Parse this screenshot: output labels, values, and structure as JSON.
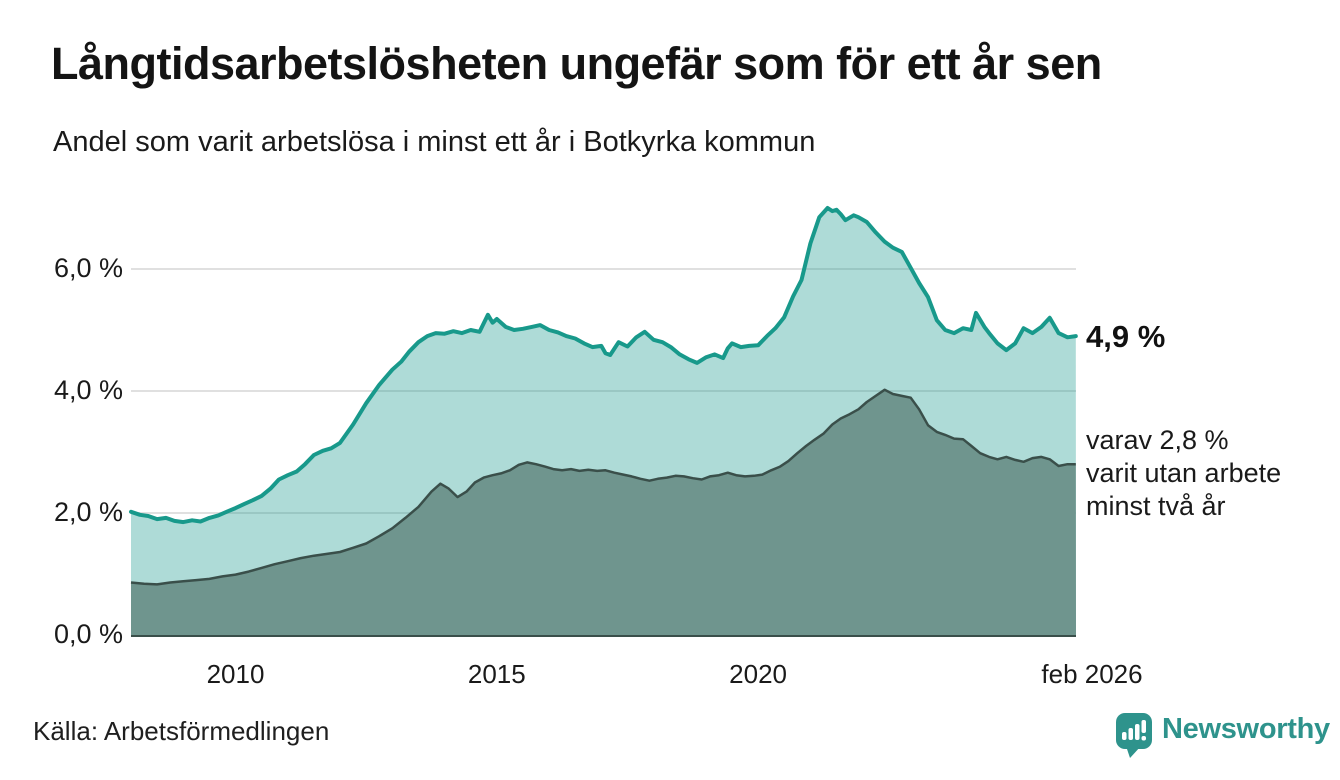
{
  "header": {
    "title": "Långtidsarbetslösheten ungefär som för ett år sen",
    "subtitle": "Andel som varit arbetslösa i minst ett år i Botkyrka kommun"
  },
  "annotations": {
    "latest_total": "4,9 %",
    "secondary_line1": "varav 2,8 %",
    "secondary_line2": "varit utan arbete",
    "secondary_line3": "minst två år"
  },
  "footer": {
    "source": "Källa: Arbetsförmedlingen",
    "brand": "Newsworthy",
    "brand_icon": "newsworthy-speech-bubble-bar-chart-icon"
  },
  "colors": {
    "accent_line": "#18998b",
    "area_light_fill": "rgba(24,153,139,0.35)",
    "area_dark_fill": "#6f958e",
    "area_dark_stroke": "#3a4f4a",
    "gridline": "#e0e0e0",
    "text": "#1a1a1a",
    "brand": "#2e938c"
  },
  "chart_data": {
    "type": "area",
    "title": "Långtidsarbetslösheten ungefär som för ett år sen",
    "subtitle": "Andel som varit arbetslösa i minst ett år i Botkyrka kommun",
    "xlabel": "",
    "ylabel": "",
    "xlim": [
      2008.0,
      2026.083
    ],
    "ylim": [
      0,
      7.35
    ],
    "grid": true,
    "legend": "none (direct labels at line ends)",
    "y_ticks": [
      {
        "label": "0,0 %",
        "v": 0
      },
      {
        "label": "2,0 %",
        "v": 2
      },
      {
        "label": "4,0 %",
        "v": 4
      },
      {
        "label": "6,0 %",
        "v": 6
      }
    ],
    "x_ticks": [
      {
        "label": "2010",
        "x": 2010
      },
      {
        "label": "2015",
        "x": 2015
      },
      {
        "label": "2020",
        "x": 2020
      },
      {
        "label": "feb 2026",
        "x": 2026.083
      }
    ],
    "series": [
      {
        "name": "Andel arbetslösa minst ett år",
        "latest_label": "4,9 %",
        "points": [
          [
            2008.0,
            2.02
          ],
          [
            2008.17,
            1.97
          ],
          [
            2008.33,
            1.95
          ],
          [
            2008.5,
            1.9
          ],
          [
            2008.67,
            1.92
          ],
          [
            2008.83,
            1.87
          ],
          [
            2009.0,
            1.85
          ],
          [
            2009.17,
            1.88
          ],
          [
            2009.33,
            1.86
          ],
          [
            2009.5,
            1.92
          ],
          [
            2009.67,
            1.96
          ],
          [
            2009.83,
            2.02
          ],
          [
            2010.0,
            2.08
          ],
          [
            2010.17,
            2.15
          ],
          [
            2010.33,
            2.21
          ],
          [
            2010.5,
            2.28
          ],
          [
            2010.67,
            2.4
          ],
          [
            2010.83,
            2.55
          ],
          [
            2011.0,
            2.62
          ],
          [
            2011.17,
            2.68
          ],
          [
            2011.33,
            2.8
          ],
          [
            2011.5,
            2.95
          ],
          [
            2011.67,
            3.02
          ],
          [
            2011.83,
            3.06
          ],
          [
            2012.0,
            3.15
          ],
          [
            2012.25,
            3.45
          ],
          [
            2012.5,
            3.8
          ],
          [
            2012.75,
            4.1
          ],
          [
            2013.0,
            4.35
          ],
          [
            2013.17,
            4.48
          ],
          [
            2013.33,
            4.65
          ],
          [
            2013.5,
            4.8
          ],
          [
            2013.67,
            4.9
          ],
          [
            2013.83,
            4.95
          ],
          [
            2014.0,
            4.94
          ],
          [
            2014.17,
            4.98
          ],
          [
            2014.33,
            4.95
          ],
          [
            2014.5,
            5.0
          ],
          [
            2014.67,
            4.97
          ],
          [
            2014.83,
            5.25
          ],
          [
            2014.92,
            5.12
          ],
          [
            2015.0,
            5.18
          ],
          [
            2015.17,
            5.05
          ],
          [
            2015.33,
            5.0
          ],
          [
            2015.5,
            5.02
          ],
          [
            2015.67,
            5.05
          ],
          [
            2015.83,
            5.08
          ],
          [
            2016.0,
            5.0
          ],
          [
            2016.17,
            4.96
          ],
          [
            2016.33,
            4.9
          ],
          [
            2016.5,
            4.86
          ],
          [
            2016.67,
            4.78
          ],
          [
            2016.83,
            4.72
          ],
          [
            2017.0,
            4.74
          ],
          [
            2017.08,
            4.62
          ],
          [
            2017.17,
            4.59
          ],
          [
            2017.33,
            4.8
          ],
          [
            2017.5,
            4.73
          ],
          [
            2017.67,
            4.88
          ],
          [
            2017.83,
            4.97
          ],
          [
            2018.0,
            4.84
          ],
          [
            2018.17,
            4.8
          ],
          [
            2018.33,
            4.72
          ],
          [
            2018.5,
            4.6
          ],
          [
            2018.67,
            4.52
          ],
          [
            2018.83,
            4.46
          ],
          [
            2019.0,
            4.55
          ],
          [
            2019.17,
            4.6
          ],
          [
            2019.33,
            4.54
          ],
          [
            2019.42,
            4.7
          ],
          [
            2019.5,
            4.78
          ],
          [
            2019.67,
            4.72
          ],
          [
            2019.83,
            4.74
          ],
          [
            2020.0,
            4.75
          ],
          [
            2020.17,
            4.9
          ],
          [
            2020.33,
            5.03
          ],
          [
            2020.5,
            5.21
          ],
          [
            2020.67,
            5.55
          ],
          [
            2020.83,
            5.82
          ],
          [
            2021.0,
            6.42
          ],
          [
            2021.17,
            6.85
          ],
          [
            2021.33,
            7.0
          ],
          [
            2021.42,
            6.95
          ],
          [
            2021.5,
            6.97
          ],
          [
            2021.58,
            6.9
          ],
          [
            2021.67,
            6.8
          ],
          [
            2021.83,
            6.88
          ],
          [
            2021.92,
            6.85
          ],
          [
            2022.08,
            6.77
          ],
          [
            2022.25,
            6.6
          ],
          [
            2022.42,
            6.45
          ],
          [
            2022.58,
            6.35
          ],
          [
            2022.75,
            6.28
          ],
          [
            2022.92,
            6.02
          ],
          [
            2023.08,
            5.77
          ],
          [
            2023.25,
            5.54
          ],
          [
            2023.42,
            5.16
          ],
          [
            2023.58,
            5.0
          ],
          [
            2023.75,
            4.95
          ],
          [
            2023.92,
            5.03
          ],
          [
            2024.08,
            5.0
          ],
          [
            2024.17,
            5.28
          ],
          [
            2024.33,
            5.05
          ],
          [
            2024.42,
            4.95
          ],
          [
            2024.58,
            4.78
          ],
          [
            2024.75,
            4.67
          ],
          [
            2024.92,
            4.78
          ],
          [
            2025.08,
            5.03
          ],
          [
            2025.25,
            4.95
          ],
          [
            2025.42,
            5.05
          ],
          [
            2025.58,
            5.2
          ],
          [
            2025.75,
            4.95
          ],
          [
            2025.92,
            4.88
          ],
          [
            2026.08,
            4.9
          ]
        ]
      },
      {
        "name": "Varav arbetslösa minst två år",
        "latest_label": "2,8 %",
        "points": [
          [
            2008.0,
            0.86
          ],
          [
            2008.25,
            0.84
          ],
          [
            2008.5,
            0.83
          ],
          [
            2008.75,
            0.86
          ],
          [
            2009.0,
            0.88
          ],
          [
            2009.25,
            0.9
          ],
          [
            2009.5,
            0.92
          ],
          [
            2009.75,
            0.96
          ],
          [
            2010.0,
            0.99
          ],
          [
            2010.25,
            1.04
          ],
          [
            2010.5,
            1.1
          ],
          [
            2010.75,
            1.16
          ],
          [
            2011.0,
            1.21
          ],
          [
            2011.25,
            1.26
          ],
          [
            2011.5,
            1.3
          ],
          [
            2011.75,
            1.33
          ],
          [
            2012.0,
            1.36
          ],
          [
            2012.25,
            1.43
          ],
          [
            2012.5,
            1.5
          ],
          [
            2012.75,
            1.62
          ],
          [
            2013.0,
            1.75
          ],
          [
            2013.25,
            1.92
          ],
          [
            2013.5,
            2.1
          ],
          [
            2013.75,
            2.35
          ],
          [
            2013.92,
            2.48
          ],
          [
            2014.08,
            2.4
          ],
          [
            2014.25,
            2.26
          ],
          [
            2014.42,
            2.35
          ],
          [
            2014.58,
            2.5
          ],
          [
            2014.75,
            2.58
          ],
          [
            2014.92,
            2.62
          ],
          [
            2015.08,
            2.65
          ],
          [
            2015.25,
            2.7
          ],
          [
            2015.42,
            2.79
          ],
          [
            2015.58,
            2.83
          ],
          [
            2015.75,
            2.8
          ],
          [
            2015.92,
            2.76
          ],
          [
            2016.08,
            2.72
          ],
          [
            2016.25,
            2.7
          ],
          [
            2016.42,
            2.72
          ],
          [
            2016.58,
            2.69
          ],
          [
            2016.75,
            2.71
          ],
          [
            2016.92,
            2.69
          ],
          [
            2017.08,
            2.7
          ],
          [
            2017.25,
            2.66
          ],
          [
            2017.42,
            2.63
          ],
          [
            2017.58,
            2.6
          ],
          [
            2017.75,
            2.56
          ],
          [
            2017.92,
            2.53
          ],
          [
            2018.08,
            2.56
          ],
          [
            2018.25,
            2.58
          ],
          [
            2018.42,
            2.61
          ],
          [
            2018.58,
            2.6
          ],
          [
            2018.75,
            2.57
          ],
          [
            2018.92,
            2.55
          ],
          [
            2019.08,
            2.6
          ],
          [
            2019.25,
            2.62
          ],
          [
            2019.42,
            2.66
          ],
          [
            2019.58,
            2.62
          ],
          [
            2019.75,
            2.6
          ],
          [
            2019.92,
            2.61
          ],
          [
            2020.08,
            2.63
          ],
          [
            2020.25,
            2.7
          ],
          [
            2020.42,
            2.76
          ],
          [
            2020.58,
            2.85
          ],
          [
            2020.75,
            2.98
          ],
          [
            2020.92,
            3.1
          ],
          [
            2021.08,
            3.2
          ],
          [
            2021.25,
            3.3
          ],
          [
            2021.42,
            3.45
          ],
          [
            2021.58,
            3.55
          ],
          [
            2021.75,
            3.62
          ],
          [
            2021.92,
            3.7
          ],
          [
            2022.08,
            3.82
          ],
          [
            2022.25,
            3.92
          ],
          [
            2022.42,
            4.02
          ],
          [
            2022.58,
            3.95
          ],
          [
            2022.75,
            3.92
          ],
          [
            2022.92,
            3.89
          ],
          [
            2023.08,
            3.7
          ],
          [
            2023.25,
            3.44
          ],
          [
            2023.42,
            3.33
          ],
          [
            2023.58,
            3.28
          ],
          [
            2023.75,
            3.22
          ],
          [
            2023.92,
            3.21
          ],
          [
            2024.08,
            3.1
          ],
          [
            2024.25,
            2.98
          ],
          [
            2024.42,
            2.92
          ],
          [
            2024.58,
            2.88
          ],
          [
            2024.75,
            2.92
          ],
          [
            2024.92,
            2.87
          ],
          [
            2025.08,
            2.84
          ],
          [
            2025.25,
            2.9
          ],
          [
            2025.42,
            2.92
          ],
          [
            2025.58,
            2.88
          ],
          [
            2025.75,
            2.77
          ],
          [
            2025.92,
            2.8
          ],
          [
            2026.08,
            2.8
          ]
        ]
      }
    ]
  }
}
